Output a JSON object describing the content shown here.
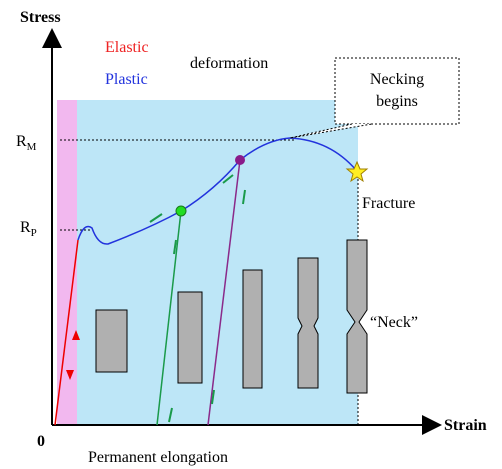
{
  "axes": {
    "y_label": "Stress",
    "x_label": "Strain",
    "origin": "0"
  },
  "legend": {
    "elastic": "Elastic",
    "plastic": "Plastic",
    "deformation": "deformation"
  },
  "levels": {
    "rm": {
      "main": "R",
      "sub": "M"
    },
    "rp": {
      "main": "R",
      "sub": "P"
    }
  },
  "callout": {
    "line1": "Necking",
    "line2": "begins"
  },
  "annotations": {
    "fracture": "Fracture",
    "neck": "“Neck”",
    "permanent": "Permanent elongation"
  }
}
